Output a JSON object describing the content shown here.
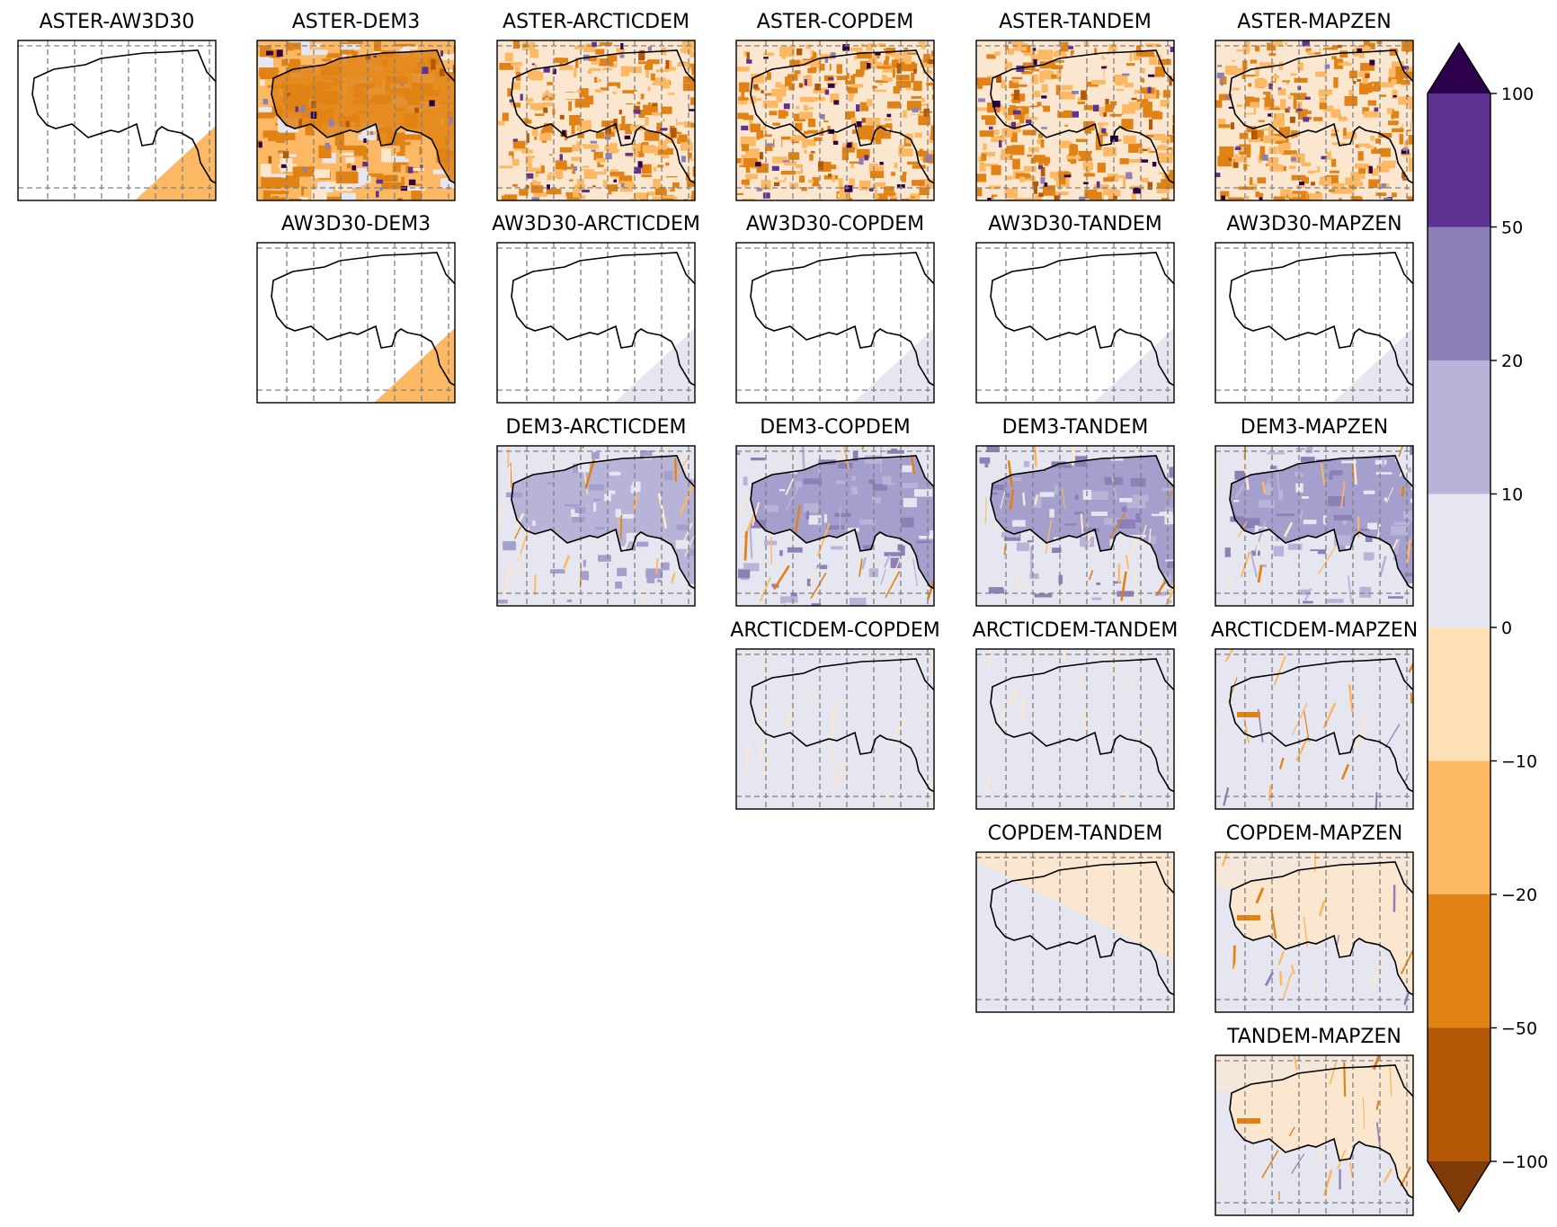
{
  "chart_data": {
    "type": "heatmap",
    "grid": "6 columns x 6 rows, upper-triangular arrangement of pairwise DEM difference maps",
    "panels": [
      {
        "title": "ASTER-AW3D30",
        "row": 0,
        "col": 0,
        "fill": "none",
        "wedge": "orange"
      },
      {
        "title": "ASTER-DEM3",
        "row": 0,
        "col": 1,
        "fill": "strong-orange",
        "wedge": "none"
      },
      {
        "title": "ASTER-ARCTICDEM",
        "row": 0,
        "col": 2,
        "fill": "mixed-orange",
        "wedge": "none"
      },
      {
        "title": "ASTER-COPDEM",
        "row": 0,
        "col": 3,
        "fill": "mixed-orange",
        "wedge": "none"
      },
      {
        "title": "ASTER-TANDEM",
        "row": 0,
        "col": 4,
        "fill": "mixed-orange",
        "wedge": "none"
      },
      {
        "title": "ASTER-MAPZEN",
        "row": 0,
        "col": 5,
        "fill": "mixed-orange",
        "wedge": "none"
      },
      {
        "title": "AW3D30-DEM3",
        "row": 1,
        "col": 1,
        "fill": "none",
        "wedge": "orange"
      },
      {
        "title": "AW3D30-ARCTICDEM",
        "row": 1,
        "col": 2,
        "fill": "none",
        "wedge": "lavender"
      },
      {
        "title": "AW3D30-COPDEM",
        "row": 1,
        "col": 3,
        "fill": "none",
        "wedge": "lavender"
      },
      {
        "title": "AW3D30-TANDEM",
        "row": 1,
        "col": 4,
        "fill": "none",
        "wedge": "lavender"
      },
      {
        "title": "AW3D30-MAPZEN",
        "row": 1,
        "col": 5,
        "fill": "none",
        "wedge": "lavender"
      },
      {
        "title": "DEM3-ARCTICDEM",
        "row": 2,
        "col": 2,
        "fill": "purple-light",
        "wedge": "none"
      },
      {
        "title": "DEM3-COPDEM",
        "row": 2,
        "col": 3,
        "fill": "purple-strong",
        "wedge": "none"
      },
      {
        "title": "DEM3-TANDEM",
        "row": 2,
        "col": 4,
        "fill": "purple-strong",
        "wedge": "none"
      },
      {
        "title": "DEM3-MAPZEN",
        "row": 2,
        "col": 5,
        "fill": "purple-strong",
        "wedge": "none"
      },
      {
        "title": "ARCTICDEM-COPDEM",
        "row": 3,
        "col": 3,
        "fill": "lavender",
        "wedge": "none"
      },
      {
        "title": "ARCTICDEM-TANDEM",
        "row": 3,
        "col": 4,
        "fill": "lavender",
        "wedge": "none"
      },
      {
        "title": "ARCTICDEM-MAPZEN",
        "row": 3,
        "col": 5,
        "fill": "lavender-streaks",
        "wedge": "none"
      },
      {
        "title": "COPDEM-TANDEM",
        "row": 4,
        "col": 4,
        "fill": "split-cream-lavender",
        "wedge": "none"
      },
      {
        "title": "COPDEM-MAPZEN",
        "row": 4,
        "col": 5,
        "fill": "cream-streaks",
        "wedge": "none"
      },
      {
        "title": "TANDEM-MAPZEN",
        "row": 5,
        "col": 5,
        "fill": "cream-streaks",
        "wedge": "none"
      }
    ],
    "colorbar": {
      "boundaries": [
        -100,
        -50,
        -20,
        -10,
        0,
        10,
        20,
        50,
        100
      ],
      "tick_labels": [
        "−100",
        "−50",
        "−20",
        "−10",
        "0",
        "10",
        "20",
        "50",
        "100"
      ],
      "colors": [
        "#b35806",
        "#e08214",
        "#fdb863",
        "#fee0b6",
        "#e6e6f0",
        "#b8b4d8",
        "#8c80b6",
        "#5e3290"
      ],
      "extend_low_color": "#7f3b08",
      "extend_high_color": "#2d004b",
      "extend": "both"
    },
    "colors": {
      "lavender": "#e6e6f0",
      "cream": "#fbe7cf",
      "light_purple": "#b8b4d8",
      "mid_purple": "#a59fcd",
      "orange": "#e08214",
      "light_orange": "#fdb863",
      "dark_orange": "#b35806",
      "dark_purple": "#2d004b",
      "boundary_line": "#000000",
      "grid_line": "#808080"
    }
  }
}
